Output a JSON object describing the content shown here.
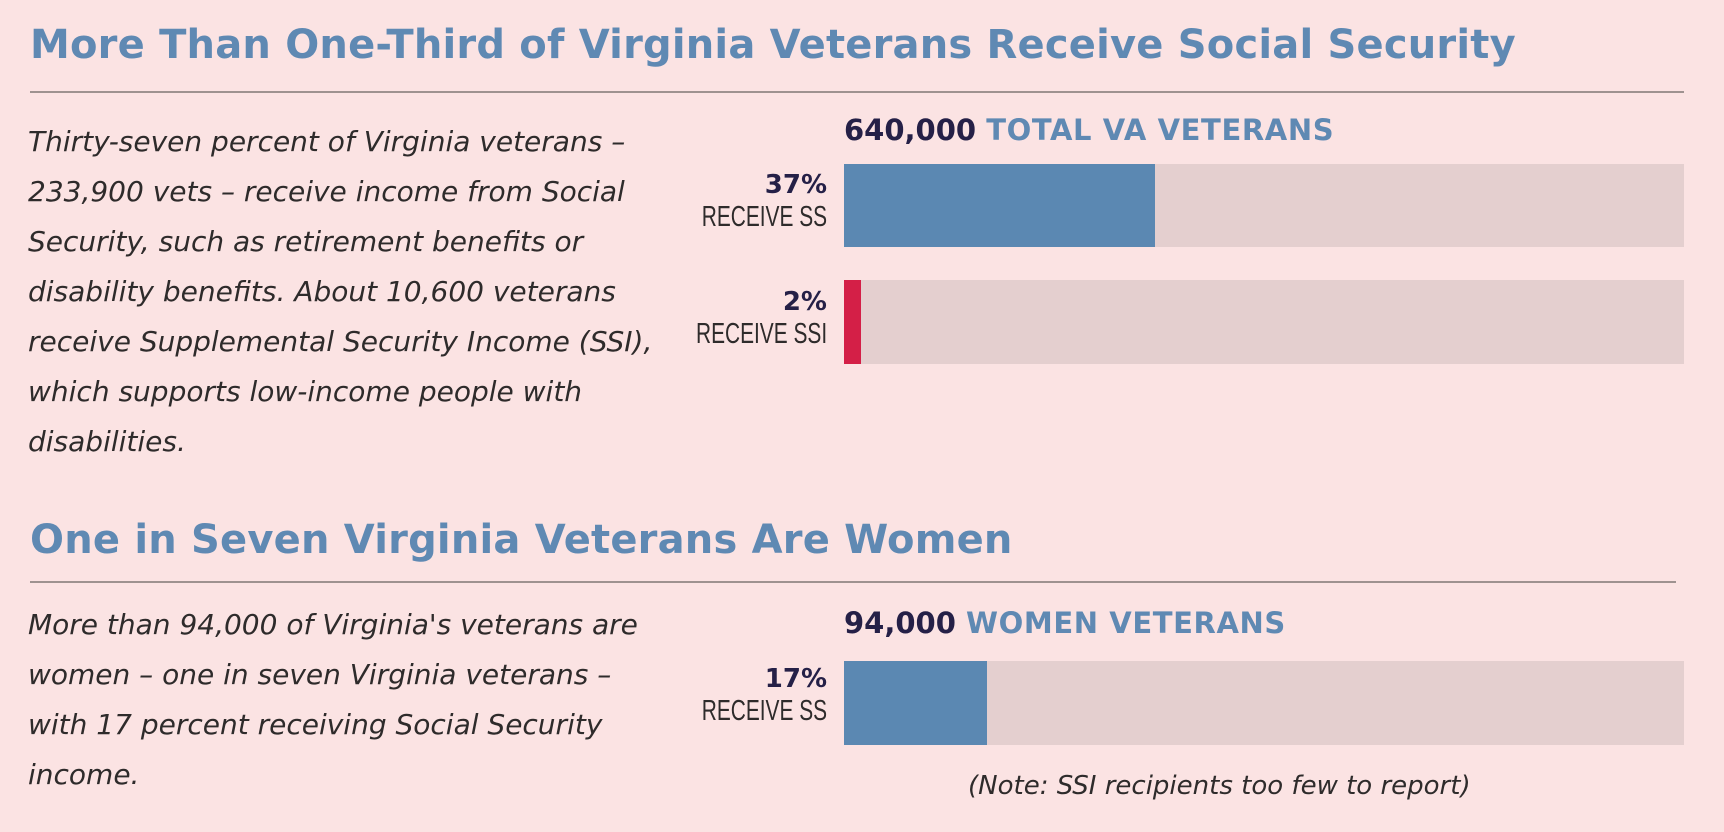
{
  "section1": {
    "title": "More Than One-Third of Virginia Veterans Receive Social Security",
    "body": "Thirty-seven percent of Virginia veterans – 233,900 vets – receive income from Social Security, such as retirement benefits or disability benefits. About 10,600 veterans receive Supplemental Security Income (SSI), which supports low-income people with disabilities."
  },
  "section2": {
    "title": "One in Seven Virginia Veterans Are Women",
    "body": "More than 94,000 of Virginia's veterans are women – one in seven Virginia veterans – with 17 percent receiving Social Security income."
  },
  "colors": {
    "blue": "#5b88b2",
    "red": "#d41f47",
    "track": "#e4cfcf"
  },
  "chart_data": [
    {
      "type": "bar",
      "orientation": "horizontal",
      "header_number": "640,000",
      "header_label": "TOTAL VA VETERANS",
      "series": [
        {
          "pct_label": "37%",
          "label": "RECEIVE SS",
          "value": 37,
          "color": "#5b88b2"
        },
        {
          "pct_label": "2%",
          "label": "RECEIVE SSI",
          "value": 2,
          "color": "#d41f47"
        }
      ],
      "xlim": [
        0,
        100
      ]
    },
    {
      "type": "bar",
      "orientation": "horizontal",
      "header_number": "94,000",
      "header_label": "WOMEN VETERANS",
      "series": [
        {
          "pct_label": "17%",
          "label": "RECEIVE SS",
          "value": 17,
          "color": "#5b88b2"
        }
      ],
      "xlim": [
        0,
        100
      ],
      "note": "(Note: SSI recipients too few to report)"
    }
  ]
}
